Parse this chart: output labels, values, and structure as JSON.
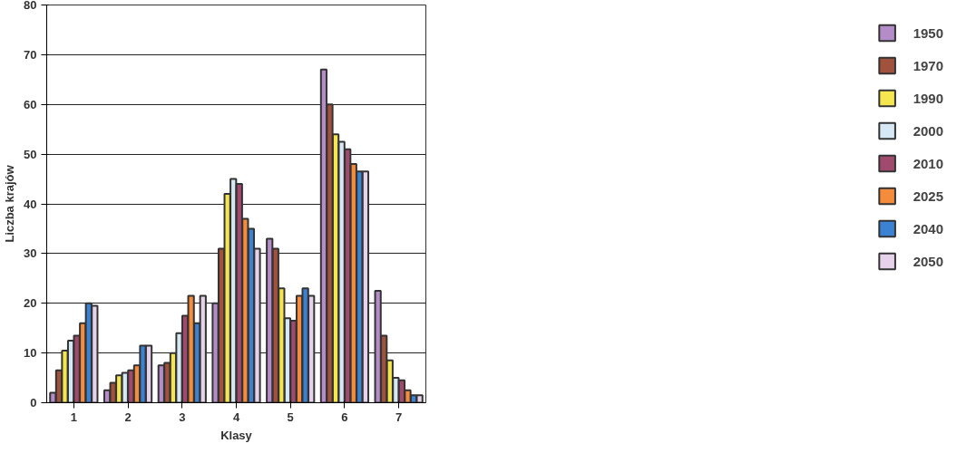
{
  "chart_data": {
    "type": "bar",
    "xlabel": "Klasy",
    "ylabel": "Liczba krajów",
    "categories": [
      "1",
      "2",
      "3",
      "4",
      "5",
      "6",
      "7"
    ],
    "series": [
      {
        "name": "1950",
        "color": "#b48cc8",
        "values": [
          2,
          2.5,
          7.5,
          20,
          33,
          67,
          22.5
        ]
      },
      {
        "name": "1970",
        "color": "#a0523c",
        "values": [
          6.5,
          4,
          8,
          31,
          31,
          60,
          13.5
        ]
      },
      {
        "name": "1990",
        "color": "#f5e650",
        "values": [
          10.5,
          5.5,
          10,
          42,
          23,
          54,
          8.5
        ]
      },
      {
        "name": "2000",
        "color": "#d7e8f5",
        "values": [
          12.5,
          6,
          14,
          45,
          17,
          52.5,
          5
        ]
      },
      {
        "name": "2010",
        "color": "#a04b6e",
        "values": [
          13.5,
          6.5,
          17.5,
          44,
          16.5,
          51,
          4.5
        ]
      },
      {
        "name": "2025",
        "color": "#f58c3c",
        "values": [
          16,
          7.5,
          21.5,
          37,
          21.5,
          48,
          2.5
        ]
      },
      {
        "name": "2040",
        "color": "#3c82d2",
        "values": [
          20,
          11.5,
          16,
          35,
          23,
          46.5,
          1.5
        ]
      },
      {
        "name": "2050",
        "color": "#e6d2eb",
        "values": [
          19.5,
          11.5,
          21.5,
          31,
          21.5,
          46.5,
          1.5
        ]
      }
    ],
    "ylim": [
      0,
      80
    ],
    "yticks": [
      0,
      10,
      20,
      30,
      40,
      50,
      60,
      70,
      80
    ],
    "grid": "y",
    "legend": "right"
  }
}
